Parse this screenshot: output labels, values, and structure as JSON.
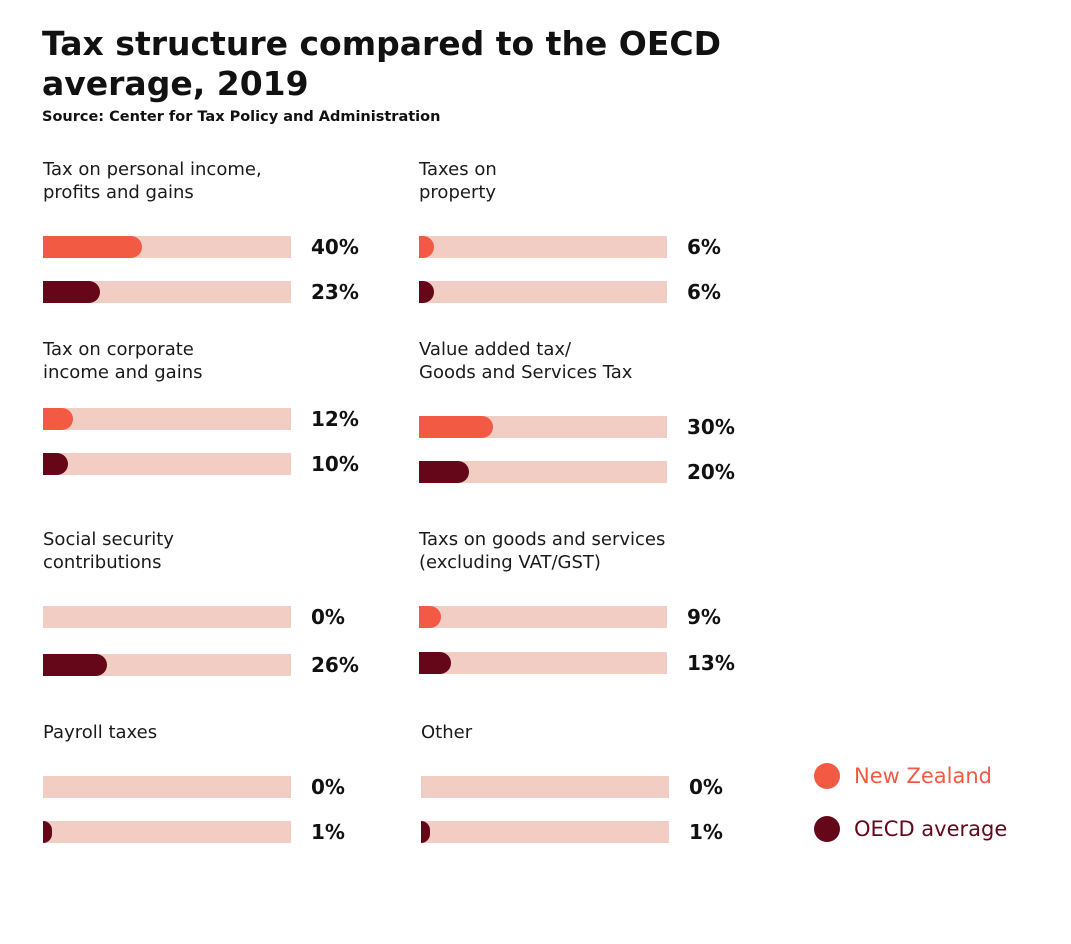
{
  "title": "Tax structure compared to the OECD average, 2019",
  "subtitle": "Source: Center for Tax Policy and Administration",
  "colors": {
    "new_zealand": "#f25a44",
    "oecd_average": "#650719",
    "track": "#f2cdc4"
  },
  "legend": {
    "new_zealand": "New Zealand",
    "oecd_average": "OECD average"
  },
  "chart_data": {
    "type": "bar",
    "xlim": [
      0,
      100
    ],
    "series": [
      {
        "name": "New Zealand",
        "values": [
          40,
          6,
          12,
          30,
          0,
          9,
          0,
          0
        ]
      },
      {
        "name": "OECD average",
        "values": [
          23,
          6,
          10,
          20,
          26,
          13,
          1,
          1
        ]
      }
    ],
    "categories": [
      "Tax on personal income,\nprofits and gains",
      "Taxes on\nproperty",
      "Tax on corporate\nincome and gains",
      "Value added tax/\nGoods and Services Tax",
      "Social security\ncontributions",
      "Taxs on goods and services\n(excluding VAT/GST)",
      "Payroll taxes",
      "Other"
    ],
    "value_labels": {
      "new_zealand": [
        "40%",
        "6%",
        "12%",
        "30%",
        "0%",
        "9%",
        "0%",
        "0%"
      ],
      "oecd_average": [
        "23%",
        "6%",
        "10%",
        "20%",
        "26%",
        "13%",
        "1%",
        "1%"
      ]
    },
    "legend_position": "bottom-right"
  }
}
